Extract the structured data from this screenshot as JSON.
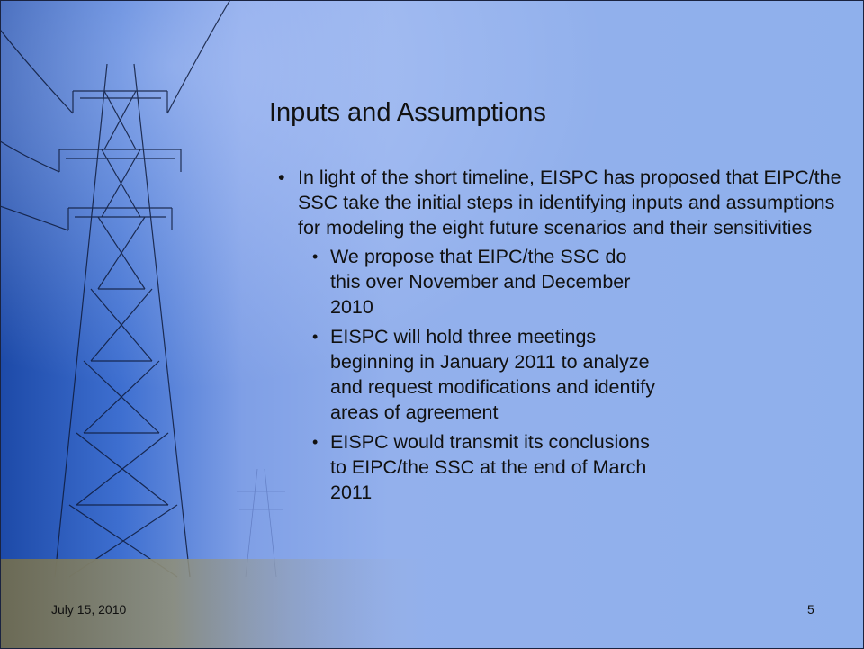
{
  "slide": {
    "title": "Inputs and Assumptions",
    "bullets": [
      {
        "text": "In light of the short timeline, EISPC has proposed that EIPC/the SSC take the initial steps in identifying inputs and assumptions for modeling the eight future scenarios and their sensitivities",
        "sub_bullets": [
          "We propose that EIPC/the SSC do this over November and December 2010",
          "EISPC will hold three meetings beginning in January 2011 to analyze and request modifications and identify areas of agreement",
          "EISPC would transmit its conclusions to EIPC/the SSC at the end of March 2011"
        ]
      }
    ],
    "footer": {
      "date": "July 15, 2010",
      "page_number": "5"
    }
  }
}
